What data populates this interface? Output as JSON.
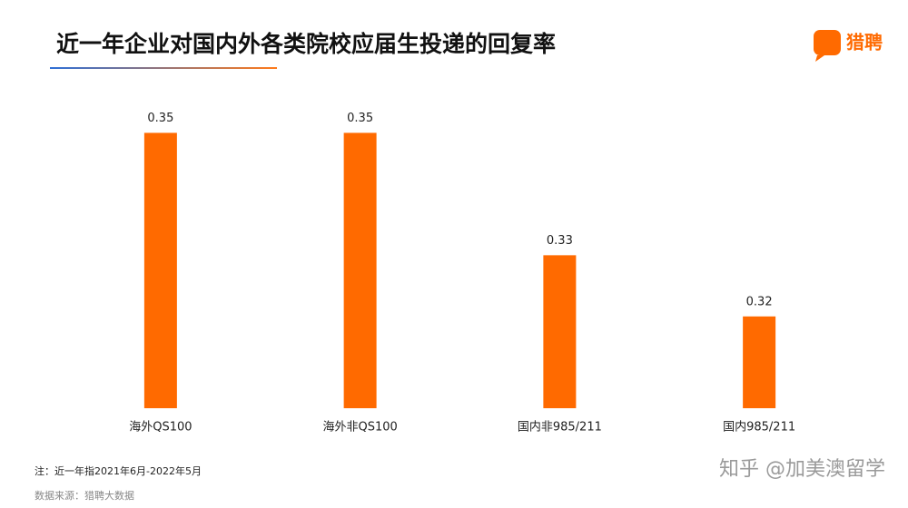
{
  "chart_data": {
    "type": "bar",
    "title": "近一年企业对国内外各类院校应届生投递的回复率",
    "categories": [
      "海外QS100",
      "海外非QS100",
      "国内非985/211",
      "国内985/211"
    ],
    "values": [
      0.35,
      0.35,
      0.33,
      0.32
    ],
    "color": "#ff6a00",
    "ylim": [
      0.305,
      0.36
    ],
    "grid": false
  },
  "brand": "猎聘",
  "note": "注：近一年指2021年6月-2022年5月",
  "source": "数据来源：猎聘大数据",
  "watermark": "知乎 @加美澳留学"
}
